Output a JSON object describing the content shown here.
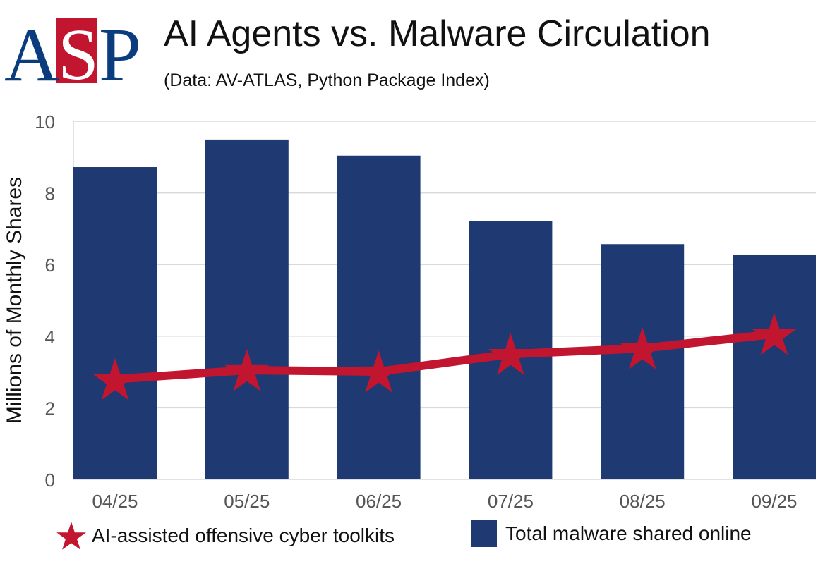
{
  "logo_text": "ASP",
  "colors": {
    "bar": "#1f3a72",
    "line": "#c2152f",
    "logo_blue": "#0b3d7e",
    "logo_red": "#c2152f",
    "grid": "#d9d9d9"
  },
  "chart_data": {
    "type": "bar",
    "title": "AI Agents vs. Malware Circulation",
    "subtitle": "(Data: AV-ATLAS, Python Package Index)",
    "xlabel": "",
    "ylabel": "Millions of Monthly Shares",
    "ylim": [
      0,
      10
    ],
    "yticks": [
      "0",
      "2",
      "4",
      "6",
      "8",
      "10"
    ],
    "grid": true,
    "categories": [
      "04/25",
      "05/25",
      "06/25",
      "07/25",
      "08/25",
      "09/25"
    ],
    "series": [
      {
        "name": "Total malware shared online",
        "kind": "bar",
        "values": [
          8.72,
          9.49,
          9.04,
          7.22,
          6.57,
          6.28
        ]
      },
      {
        "name": "AI-assisted offensive cyber toolkits",
        "kind": "line",
        "marker": "star",
        "values": [
          2.8,
          3.05,
          3.01,
          3.5,
          3.66,
          4.06
        ]
      }
    ],
    "legend_position": "bottom"
  }
}
